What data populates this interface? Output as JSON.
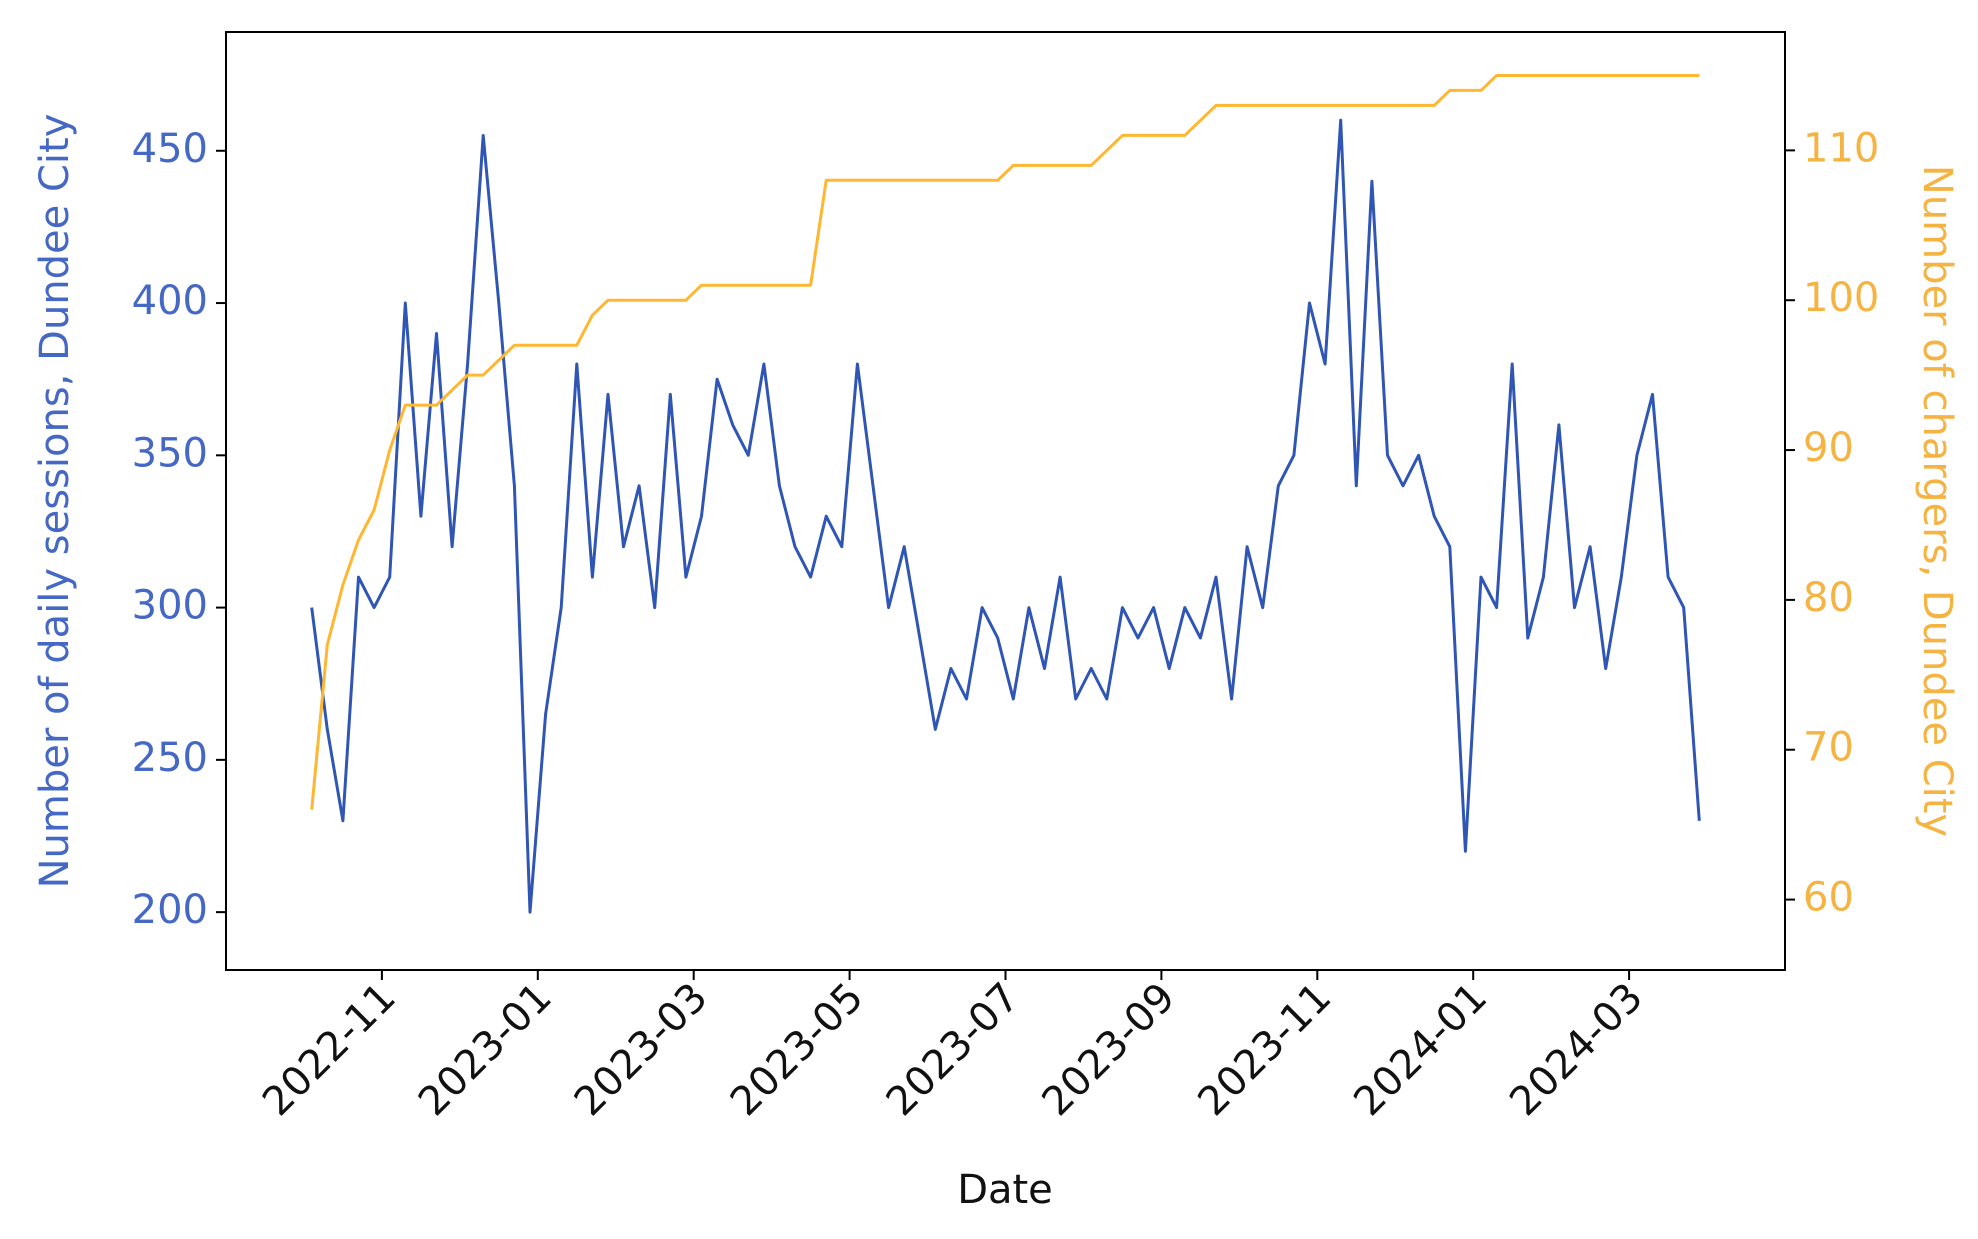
{
  "chart_data": {
    "type": "line",
    "xlabel": "Date",
    "ylabel": "Number of daily sessions, Dundee City",
    "y2label": "Number of chargers, Dundee City",
    "x": [
      "2022-10",
      "2022-10",
      "2022-10",
      "2022-10",
      "2022-10",
      "2022-11",
      "2022-11",
      "2022-11",
      "2022-11",
      "2022-11",
      "2022-12",
      "2022-12",
      "2022-12",
      "2022-12",
      "2022-12",
      "2023-01",
      "2023-01",
      "2023-01",
      "2023-01",
      "2023-01",
      "2023-02",
      "2023-02",
      "2023-02",
      "2023-02",
      "2023-02",
      "2023-03",
      "2023-03",
      "2023-03",
      "2023-03",
      "2023-03",
      "2023-04",
      "2023-04",
      "2023-04",
      "2023-04",
      "2023-04",
      "2023-05",
      "2023-05",
      "2023-05",
      "2023-05",
      "2023-05",
      "2023-06",
      "2023-06",
      "2023-06",
      "2023-06",
      "2023-06",
      "2023-07",
      "2023-07",
      "2023-07",
      "2023-07",
      "2023-07",
      "2023-08",
      "2023-08",
      "2023-08",
      "2023-08",
      "2023-08",
      "2023-09",
      "2023-09",
      "2023-09",
      "2023-09",
      "2023-09",
      "2023-10",
      "2023-10",
      "2023-10",
      "2023-10",
      "2023-10",
      "2023-11",
      "2023-11",
      "2023-11",
      "2023-11",
      "2023-11",
      "2023-12",
      "2023-12",
      "2023-12",
      "2023-12",
      "2023-12",
      "2024-01",
      "2024-01",
      "2024-01",
      "2024-01",
      "2024-01",
      "2024-02",
      "2024-02",
      "2024-02",
      "2024-02",
      "2024-02",
      "2024-03",
      "2024-03",
      "2024-03",
      "2024-03",
      "2024-03"
    ],
    "series": [
      {
        "name": "Number of daily sessions",
        "color": "#2f55b5",
        "values": [
          300,
          260,
          230,
          310,
          300,
          310,
          400,
          330,
          390,
          320,
          380,
          455,
          400,
          340,
          200,
          265,
          300,
          380,
          310,
          370,
          320,
          340,
          300,
          370,
          310,
          330,
          375,
          360,
          350,
          380,
          340,
          320,
          310,
          330,
          320,
          380,
          340,
          300,
          320,
          290,
          260,
          280,
          270,
          300,
          290,
          270,
          300,
          280,
          310,
          270,
          280,
          270,
          300,
          290,
          300,
          280,
          300,
          290,
          310,
          270,
          320,
          300,
          340,
          350,
          400,
          380,
          460,
          340,
          440,
          350,
          340,
          350,
          330,
          320,
          220,
          310,
          300,
          380,
          290,
          310,
          360,
          300,
          320,
          280,
          310,
          350,
          370,
          310,
          300,
          230
        ]
      },
      {
        "name": "Number of chargers",
        "color": "#ffb732",
        "axis": "y2",
        "values": [
          66,
          77,
          81,
          84,
          86,
          90,
          93,
          93,
          93,
          94,
          95,
          95,
          96,
          97,
          97,
          97,
          97,
          97,
          99,
          100,
          100,
          100,
          100,
          100,
          100,
          101,
          101,
          101,
          101,
          101,
          101,
          101,
          101,
          108,
          108,
          108,
          108,
          108,
          108,
          108,
          108,
          108,
          108,
          108,
          108,
          109,
          109,
          109,
          109,
          109,
          109,
          110,
          111,
          111,
          111,
          111,
          111,
          112,
          113,
          113,
          113,
          113,
          113,
          113,
          113,
          113,
          113,
          113,
          113,
          113,
          113,
          113,
          113,
          114,
          114,
          114,
          115,
          115,
          115,
          115,
          115,
          115,
          115,
          115,
          115,
          115,
          115,
          115,
          115,
          115
        ]
      }
    ],
    "xlim": [
      "2022-09",
      "2024-05"
    ],
    "xticks": [
      "2022-11",
      "2023-01",
      "2023-03",
      "2023-05",
      "2023-07",
      "2023-09",
      "2023-11",
      "2024-01",
      "2024-03"
    ],
    "ylim": [
      181,
      489
    ],
    "yticks": [
      200,
      250,
      300,
      350,
      400,
      450
    ],
    "ycolor": "#4468c4",
    "y2lim": [
      55.3,
      117.9
    ],
    "y2ticks": [
      60,
      70,
      80,
      90,
      100,
      110
    ],
    "y2color": "#f5b342"
  }
}
